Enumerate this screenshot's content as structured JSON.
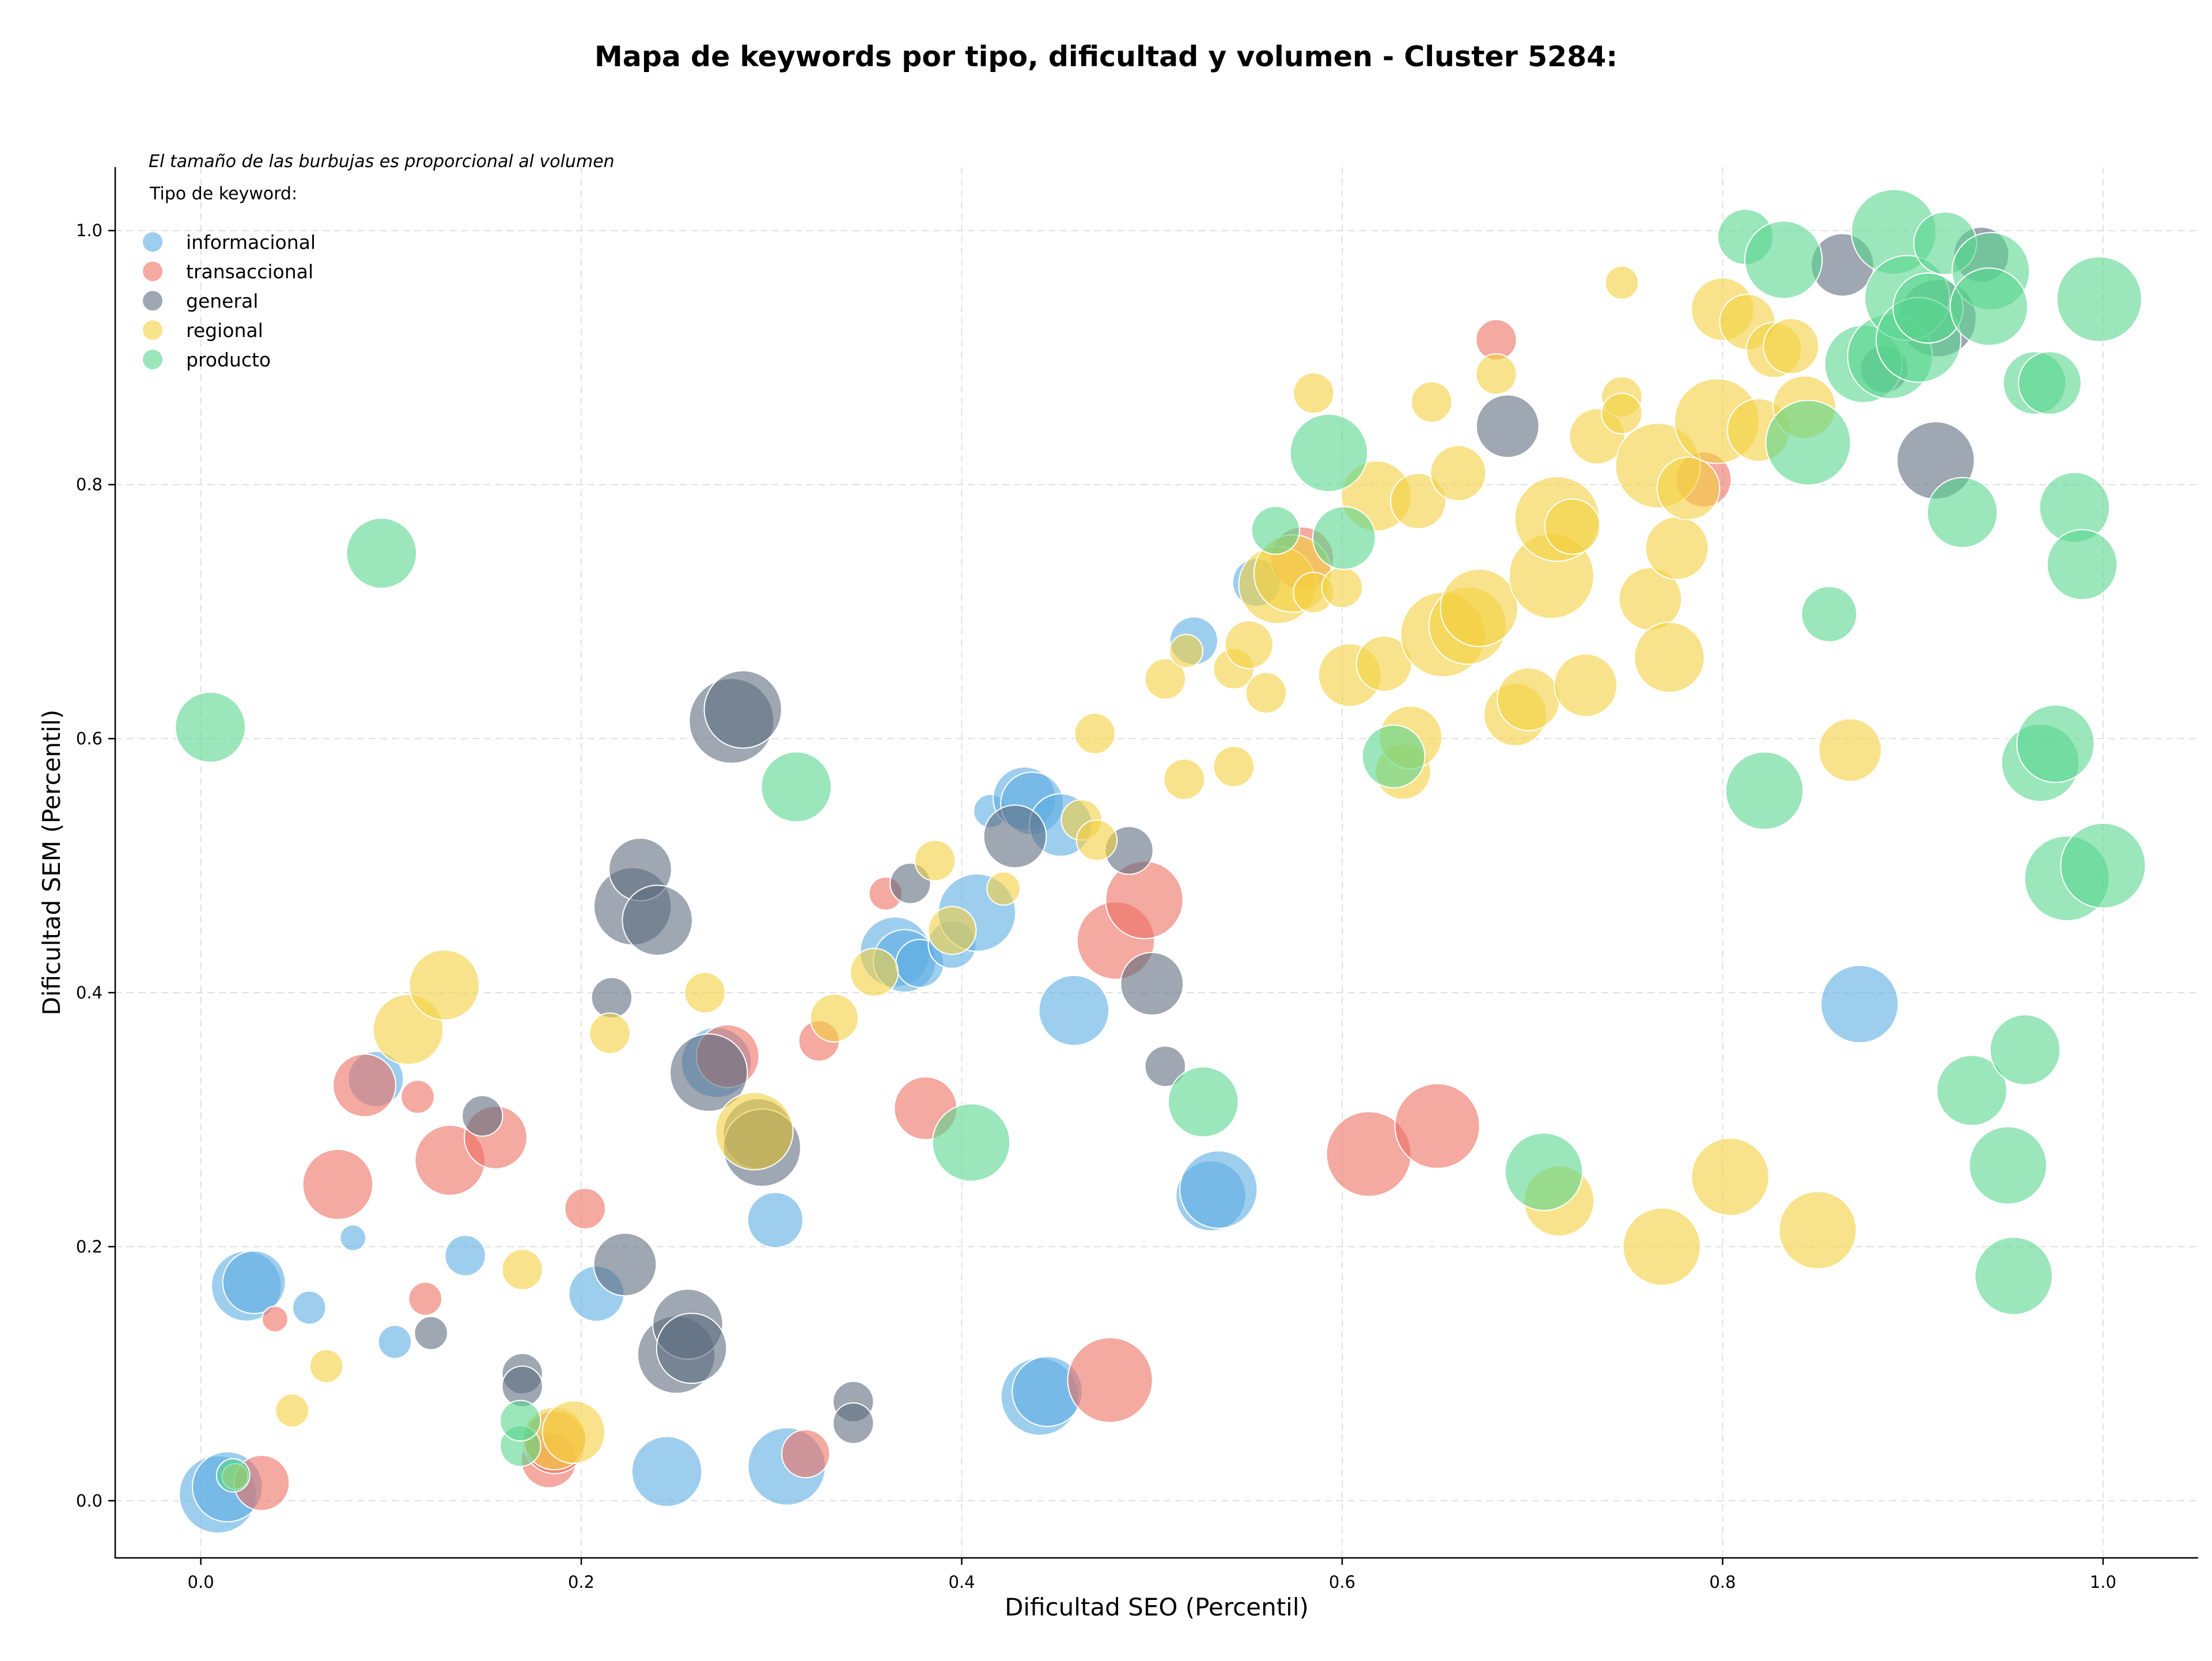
{
  "chart_data": {
    "type": "scatter",
    "title": "Mapa de keywords por tipo, dificultad y volumen - Cluster 5284:",
    "note": "El tamaño de las burbujas es proporcional al volumen",
    "xlabel": "Dificultad SEO (Percentil)",
    "ylabel": "Dificultad SEM (Percentil)",
    "xlim": [
      -0.045,
      1.05
    ],
    "ylim": [
      -0.045,
      1.05
    ],
    "xticks": [
      "0.0",
      "0.2",
      "0.4",
      "0.6",
      "0.8",
      "1.0"
    ],
    "yticks": [
      "0.0",
      "0.2",
      "0.4",
      "0.6",
      "0.8",
      "1.0"
    ],
    "grid": true,
    "legend": {
      "title": "Tipo de keyword:",
      "placement": "top-left"
    },
    "series": [
      {
        "name": "informacional",
        "color": "#5dade2",
        "points": [
          [
            0.009,
            0.005,
            9
          ],
          [
            0.014,
            0.011,
            8
          ],
          [
            0.024,
            0.169,
            8
          ],
          [
            0.028,
            0.172,
            7
          ],
          [
            0.057,
            0.152,
            3
          ],
          [
            0.08,
            0.207,
            2
          ],
          [
            0.092,
            0.332,
            6
          ],
          [
            0.102,
            0.125,
            3
          ],
          [
            0.139,
            0.193,
            4
          ],
          [
            0.208,
            0.163,
            6
          ],
          [
            0.245,
            0.023,
            8
          ],
          [
            0.271,
            0.345,
            8
          ],
          [
            0.302,
            0.221,
            6
          ],
          [
            0.308,
            0.027,
            9
          ],
          [
            0.365,
            0.432,
            8
          ],
          [
            0.37,
            0.425,
            7
          ],
          [
            0.378,
            0.423,
            5
          ],
          [
            0.395,
            0.438,
            5
          ],
          [
            0.408,
            0.463,
            9
          ],
          [
            0.415,
            0.543,
            3
          ],
          [
            0.433,
            0.553,
            7
          ],
          [
            0.437,
            0.549,
            7
          ],
          [
            0.441,
            0.082,
            9
          ],
          [
            0.445,
            0.086,
            8
          ],
          [
            0.452,
            0.532,
            7
          ],
          [
            0.459,
            0.386,
            8
          ],
          [
            0.522,
            0.677,
            5
          ],
          [
            0.531,
            0.24,
            8
          ],
          [
            0.535,
            0.245,
            9
          ],
          [
            0.555,
            0.723,
            5
          ],
          [
            0.872,
            0.391,
            9
          ]
        ]
      },
      {
        "name": "transaccional",
        "color": "#ec7063",
        "points": [
          [
            0.032,
            0.014,
            6
          ],
          [
            0.039,
            0.143,
            2
          ],
          [
            0.072,
            0.249,
            8
          ],
          [
            0.086,
            0.327,
            7
          ],
          [
            0.114,
            0.318,
            3
          ],
          [
            0.118,
            0.159,
            3
          ],
          [
            0.131,
            0.268,
            8
          ],
          [
            0.155,
            0.286,
            7
          ],
          [
            0.183,
            0.032,
            6
          ],
          [
            0.186,
            0.046,
            7
          ],
          [
            0.202,
            0.23,
            4
          ],
          [
            0.277,
            0.35,
            7
          ],
          [
            0.318,
            0.037,
            5
          ],
          [
            0.325,
            0.362,
            4
          ],
          [
            0.36,
            0.478,
            3
          ],
          [
            0.381,
            0.309,
            7
          ],
          [
            0.478,
            0.095,
            10
          ],
          [
            0.481,
            0.441,
            9
          ],
          [
            0.496,
            0.473,
            9
          ],
          [
            0.579,
            0.742,
            7
          ],
          [
            0.614,
            0.273,
            10
          ],
          [
            0.65,
            0.295,
            10
          ],
          [
            0.681,
            0.914,
            4
          ],
          [
            0.79,
            0.804,
            6
          ]
        ]
      },
      {
        "name": "general",
        "color": "#5d6d7e",
        "points": [
          [
            0.121,
            0.132,
            3
          ],
          [
            0.148,
            0.303,
            4
          ],
          [
            0.169,
            0.1,
            4
          ],
          [
            0.169,
            0.09,
            4
          ],
          [
            0.216,
            0.396,
            4
          ],
          [
            0.223,
            0.186,
            7
          ],
          [
            0.227,
            0.468,
            9
          ],
          [
            0.231,
            0.497,
            7
          ],
          [
            0.24,
            0.457,
            8
          ],
          [
            0.25,
            0.115,
            9
          ],
          [
            0.256,
            0.139,
            8
          ],
          [
            0.258,
            0.12,
            8
          ],
          [
            0.267,
            0.337,
            9
          ],
          [
            0.279,
            0.614,
            10
          ],
          [
            0.285,
            0.623,
            9
          ],
          [
            0.293,
            0.289,
            8
          ],
          [
            0.295,
            0.278,
            9
          ],
          [
            0.343,
            0.078,
            4
          ],
          [
            0.343,
            0.061,
            4
          ],
          [
            0.373,
            0.486,
            4
          ],
          [
            0.428,
            0.523,
            7
          ],
          [
            0.488,
            0.512,
            5
          ],
          [
            0.5,
            0.407,
            7
          ],
          [
            0.507,
            0.342,
            4
          ],
          [
            0.687,
            0.846,
            7
          ],
          [
            0.863,
            0.973,
            7
          ],
          [
            0.885,
            0.891,
            5
          ],
          [
            0.912,
            0.819,
            9
          ],
          [
            0.913,
            0.931,
            9
          ],
          [
            0.936,
            0.981,
            6
          ]
        ]
      },
      {
        "name": "regional",
        "color": "#f4d03f",
        "points": [
          [
            0.018,
            0.019,
            2
          ],
          [
            0.048,
            0.071,
            3
          ],
          [
            0.066,
            0.106,
            3
          ],
          [
            0.109,
            0.371,
            8
          ],
          [
            0.128,
            0.406,
            8
          ],
          [
            0.169,
            0.182,
            4
          ],
          [
            0.186,
            0.049,
            7
          ],
          [
            0.196,
            0.054,
            7
          ],
          [
            0.215,
            0.368,
            4
          ],
          [
            0.265,
            0.4,
            4
          ],
          [
            0.291,
            0.291,
            9
          ],
          [
            0.333,
            0.38,
            5
          ],
          [
            0.354,
            0.416,
            5
          ],
          [
            0.386,
            0.504,
            4
          ],
          [
            0.395,
            0.449,
            5
          ],
          [
            0.422,
            0.482,
            3
          ],
          [
            0.463,
            0.536,
            4
          ],
          [
            0.47,
            0.604,
            4
          ],
          [
            0.471,
            0.52,
            4
          ],
          [
            0.507,
            0.647,
            4
          ],
          [
            0.517,
            0.568,
            4
          ],
          [
            0.518,
            0.669,
            3
          ],
          [
            0.543,
            0.578,
            4
          ],
          [
            0.543,
            0.655,
            4
          ],
          [
            0.551,
            0.674,
            5
          ],
          [
            0.56,
            0.636,
            4
          ],
          [
            0.566,
            0.721,
            9
          ],
          [
            0.574,
            0.73,
            9
          ],
          [
            0.585,
            0.715,
            4
          ],
          [
            0.585,
            0.872,
            4
          ],
          [
            0.6,
            0.719,
            4
          ],
          [
            0.604,
            0.65,
            7
          ],
          [
            0.618,
            0.791,
            8
          ],
          [
            0.622,
            0.659,
            6
          ],
          [
            0.632,
            0.574,
            6
          ],
          [
            0.636,
            0.601,
            7
          ],
          [
            0.64,
            0.787,
            6
          ],
          [
            0.647,
            0.865,
            4
          ],
          [
            0.653,
            0.682,
            10
          ],
          [
            0.661,
            0.809,
            6
          ],
          [
            0.666,
            0.689,
            9
          ],
          [
            0.672,
            0.703,
            9
          ],
          [
            0.681,
            0.887,
            4
          ],
          [
            0.691,
            0.619,
            7
          ],
          [
            0.698,
            0.631,
            7
          ],
          [
            0.71,
            0.728,
            10
          ],
          [
            0.713,
            0.773,
            10
          ],
          [
            0.714,
            0.236,
            8
          ],
          [
            0.721,
            0.767,
            6
          ],
          [
            0.728,
            0.642,
            7
          ],
          [
            0.734,
            0.838,
            6
          ],
          [
            0.747,
            0.959,
            3
          ],
          [
            0.747,
            0.869,
            4
          ],
          [
            0.747,
            0.856,
            4
          ],
          [
            0.762,
            0.71,
            7
          ],
          [
            0.766,
            0.815,
            10
          ],
          [
            0.768,
            0.2,
            9
          ],
          [
            0.772,
            0.664,
            8
          ],
          [
            0.776,
            0.75,
            7
          ],
          [
            0.782,
            0.797,
            7
          ],
          [
            0.797,
            0.85,
            10
          ],
          [
            0.8,
            0.938,
            7
          ],
          [
            0.804,
            0.255,
            9
          ],
          [
            0.813,
            0.928,
            6
          ],
          [
            0.819,
            0.843,
            7
          ],
          [
            0.827,
            0.906,
            6
          ],
          [
            0.836,
            0.909,
            6
          ],
          [
            0.843,
            0.861,
            7
          ],
          [
            0.85,
            0.213,
            9
          ],
          [
            0.867,
            0.591,
            7
          ]
        ]
      },
      {
        "name": "producto",
        "color": "#58d68d",
        "points": [
          [
            0.005,
            0.609,
            8
          ],
          [
            0.017,
            0.02,
            3
          ],
          [
            0.095,
            0.746,
            8
          ],
          [
            0.168,
            0.043,
            4
          ],
          [
            0.168,
            0.063,
            4
          ],
          [
            0.313,
            0.562,
            8
          ],
          [
            0.405,
            0.282,
            9
          ],
          [
            0.527,
            0.314,
            8
          ],
          [
            0.565,
            0.764,
            5
          ],
          [
            0.593,
            0.825,
            9
          ],
          [
            0.601,
            0.758,
            7
          ],
          [
            0.627,
            0.586,
            7
          ],
          [
            0.706,
            0.259,
            9
          ],
          [
            0.812,
            0.995,
            6
          ],
          [
            0.822,
            0.559,
            9
          ],
          [
            0.832,
            0.977,
            9
          ],
          [
            0.845,
            0.833,
            10
          ],
          [
            0.856,
            0.698,
            6
          ],
          [
            0.874,
            0.895,
            9
          ],
          [
            0.888,
            0.901,
            10
          ],
          [
            0.89,
            0.999,
            10
          ],
          [
            0.897,
            0.947,
            10
          ],
          [
            0.903,
            0.914,
            10
          ],
          [
            0.908,
            0.939,
            8
          ],
          [
            0.917,
            0.99,
            7
          ],
          [
            0.926,
            0.778,
            8
          ],
          [
            0.941,
            0.968,
            9
          ],
          [
            0.94,
            0.94,
            9
          ],
          [
            0.931,
            0.323,
            8
          ],
          [
            0.95,
            0.264,
            9
          ],
          [
            0.953,
            0.177,
            9
          ],
          [
            0.959,
            0.355,
            8
          ],
          [
            0.964,
            0.88,
            7
          ],
          [
            0.967,
            0.581,
            9
          ],
          [
            0.972,
            0.88,
            7
          ],
          [
            0.975,
            0.596,
            9
          ],
          [
            0.981,
            0.49,
            10
          ],
          [
            0.985,
            0.782,
            8
          ],
          [
            0.989,
            0.737,
            8
          ],
          [
            0.998,
            0.946,
            10
          ],
          [
            1.0,
            0.5,
            10
          ]
        ]
      }
    ]
  }
}
